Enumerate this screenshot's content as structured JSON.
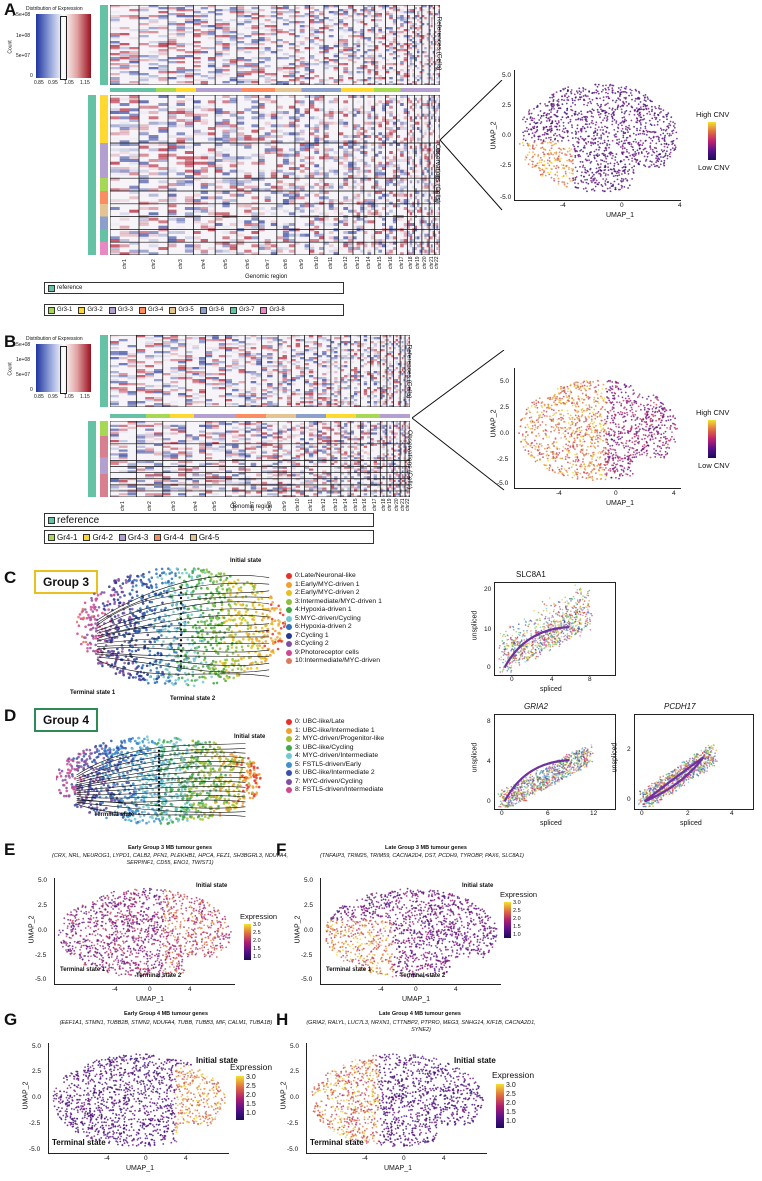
{
  "panels": {
    "A": {
      "label": "A",
      "hist_title": "Distribution of Expression",
      "hist_ylabel": "Count",
      "hist_yticks": [
        "1.5e+08",
        "1e+08",
        "5e+07",
        "0"
      ],
      "hist_xticks": [
        "0.85",
        "0.95",
        "1.05",
        "1.15"
      ],
      "ref_label": "References (Cells)",
      "obs_label": "Observations (Cells)",
      "xlabel": "Genomic region",
      "chromosomes": [
        "chr1",
        "chr2",
        "chr3",
        "chr4",
        "chr5",
        "chr6",
        "chr7",
        "chr8",
        "chr9",
        "chr10",
        "chr11",
        "chr12",
        "chr13",
        "chr14",
        "chr15",
        "chr16",
        "chr17",
        "chr18",
        "chr19",
        "chr20",
        "chr21",
        "chr22"
      ],
      "legend_ref": "reference",
      "legend_groups": [
        "Gr3-1",
        "Gr3-2",
        "Gr3-3",
        "Gr3-4",
        "Gr3-5",
        "Gr3-6",
        "Gr3-7",
        "Gr3-8"
      ],
      "umap": {
        "xlabel": "UMAP_1",
        "ylabel": "UMAP_2",
        "xticks": [
          "-4",
          "0",
          "4"
        ],
        "yticks": [
          "5.0",
          "2.5",
          "0.0",
          "-2.5",
          "-5.0"
        ],
        "cb_high": "High CNV",
        "cb_low": "Low CNV"
      }
    },
    "B": {
      "label": "B",
      "hist_title": "Distribution of Expression",
      "hist_ylabel": "Count",
      "hist_yticks": [
        "1.5e+08",
        "1e+08",
        "5e+07",
        "0"
      ],
      "hist_xticks": [
        "0.85",
        "0.95",
        "1.05",
        "1.15"
      ],
      "ref_label": "References (Cells)",
      "obs_label": "Observations (Cells)",
      "xlabel": "Genomic region",
      "chromosomes": [
        "chr1",
        "chr2",
        "chr3",
        "chr4",
        "chr5",
        "chr6",
        "chr7",
        "chr8",
        "chr9",
        "chr10",
        "chr11",
        "chr12",
        "chr13",
        "chr14",
        "chr15",
        "chr16",
        "chr17",
        "chr18",
        "chr19",
        "chr20",
        "chr21",
        "chr22"
      ],
      "legend_ref": "reference",
      "legend_groups": [
        "Gr4-1",
        "Gr4-2",
        "Gr4-3",
        "Gr4-4",
        "Gr4-5"
      ],
      "umap": {
        "xlabel": "UMAP_1",
        "ylabel": "UMAP_2",
        "xticks": [
          "-4",
          "0",
          "4"
        ],
        "yticks": [
          "5.0",
          "2.5",
          "0.0",
          "-2.5",
          "-5.0"
        ],
        "cb_high": "High CNV",
        "cb_low": "Low CNV"
      }
    },
    "C": {
      "label": "C",
      "group": "Group 3",
      "initial": "Initial state",
      "terminal1": "Terminal state 1",
      "terminal2": "Terminal state 2",
      "clusters": [
        "0:Late/Neuronal-like",
        "1:Early/MYC-driven 1",
        "2:Early/MYC-driven 2",
        "3:Intermediate/MYC-driven 1",
        "4:Hypoxia-driven 1",
        "5:MYC-driven/Cycling",
        "6:Hypoxia-driven 2",
        "7:Cycling 1",
        "8:Cycling 2",
        "9:Photoreceptor cells",
        "10:Intermediate/MYC-driven"
      ],
      "cluster_colors": [
        "#e8302a",
        "#f0a030",
        "#e8c020",
        "#8cc040",
        "#40a840",
        "#70c8d0",
        "#3070b8",
        "#283890",
        "#8050a0",
        "#d04890",
        "#e07860"
      ],
      "gene": "SLC8A1",
      "xlabel": "spliced",
      "ylabel": "unspliced",
      "xticks": [
        "0",
        "4",
        "8"
      ],
      "yticks": [
        "20",
        "10",
        "0"
      ]
    },
    "D": {
      "label": "D",
      "group": "Group 4",
      "initial": "Initial state",
      "terminal": "Terminal state",
      "clusters": [
        "0: UBC-like/Late",
        "1: UBC-like/Intermediate 1",
        "2: MYC-driven/Progenitor-like",
        "3: UBC-like/Cycling",
        "4: MYC-driven/Intermediate",
        "5: FSTL5-driven/Early",
        "6: UBC-like/Intermediate 2",
        "7: MYC-driven/Cycling",
        "8: FSTL5-driven/Intermediate"
      ],
      "cluster_colors": [
        "#e8302a",
        "#f0a030",
        "#a8c030",
        "#40a850",
        "#70c8d0",
        "#4090d0",
        "#3850a8",
        "#8050a0",
        "#d04890"
      ],
      "gene1": "GRIA2",
      "gene2": "PCDH17",
      "xlabel": "spliced",
      "ylabel": "unspliced",
      "g1_xticks": [
        "0",
        "6",
        "12"
      ],
      "g1_yticks": [
        "8",
        "4",
        "0"
      ],
      "g2_xticks": [
        "0",
        "2",
        "4"
      ],
      "g2_yticks": [
        "2",
        "0"
      ]
    },
    "E": {
      "label": "E",
      "title": "Early Group 3 MB tumour genes",
      "genes": "(CRX, NRL, NEUROG1, LYPD1, CALB2, PFN1, PLEKHB1, HPCA, FEZ1, SH3BGRL3, NDUFA4, SERPINF1, CD55, ENO1, TWIST1)",
      "initial": "Initial state",
      "terminal1": "Terminal state 1",
      "terminal2": "Terminal state 2",
      "xlabel": "UMAP_1",
      "ylabel": "UMAP_2",
      "cb_title": "Expression",
      "cb_ticks": [
        "3.0",
        "2.5",
        "2.0",
        "1.5",
        "1.0"
      ],
      "xticks": [
        "-4",
        "0",
        "4"
      ],
      "yticks": [
        "5.0",
        "2.5",
        "0.0",
        "-2.5",
        "-5.0"
      ]
    },
    "F": {
      "label": "F",
      "title": "Late Group 3 MB tumour genes",
      "genes": "(TNFAIP3, TRIM25, TRIM59, CACNA2D4, DST, PCDH9, TYROBP, PAX6, SLC8A1)",
      "initial": "Initial state",
      "terminal1": "Terminal state 1",
      "terminal2": "Terminal state 2",
      "xlabel": "UMAP_1",
      "ylabel": "UMAP_2",
      "cb_title": "Expression",
      "cb_ticks": [
        "3.0",
        "2.5",
        "2.0",
        "1.5",
        "1.0"
      ],
      "xticks": [
        "-4",
        "0",
        "4"
      ],
      "yticks": [
        "5.0",
        "2.5",
        "0.0",
        "-2.5",
        "-5.0"
      ]
    },
    "G": {
      "label": "G",
      "title": "Early Group 4 MB tumour genes",
      "genes": "(EEF1A1, STMN1, TUBB2B, STMN2, NDUFA4, TUBB, TUBB3, MIF, CALM1, TUBA1B)",
      "initial": "Initial state",
      "terminal": "Terminal state",
      "xlabel": "UMAP_1",
      "ylabel": "UMAP_2",
      "cb_title": "Expression",
      "cb_ticks": [
        "3.0",
        "2.5",
        "2.0",
        "1.5",
        "1.0"
      ],
      "xticks": [
        "-4",
        "0",
        "4"
      ],
      "yticks": [
        "5.0",
        "2.5",
        "0.0",
        "-2.5",
        "-5.0"
      ]
    },
    "H": {
      "label": "H",
      "title": "Late Group 4 MB tumour genes",
      "genes": "(GRIA2, RALYL, LUC7L3, NRXN1, CTTNBP2, PTPRO, MEG3, SNHG14, KIF1B, CACNA2D1, SYNE2)",
      "initial": "Initial state",
      "terminal": "Terminal state",
      "xlabel": "UMAP_1",
      "ylabel": "UMAP_2",
      "cb_title": "Expression",
      "cb_ticks": [
        "3.0",
        "2.5",
        "2.0",
        "1.5",
        "1.0"
      ],
      "xticks": [
        "-4",
        "0",
        "4"
      ],
      "yticks": [
        "5.0",
        "2.5",
        "0.0",
        "-2.5",
        "-5.0"
      ]
    }
  },
  "colors": {
    "ref_bar": "#66c2a5",
    "group3_box": "#e8c020",
    "group4_box": "#2e8b57",
    "heat_red": "#b2182b",
    "heat_blue": "#2c3e9a"
  }
}
